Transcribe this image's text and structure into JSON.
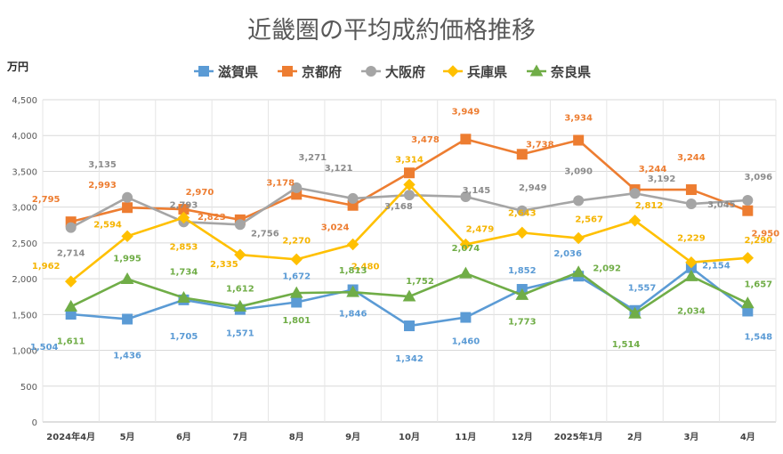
{
  "chart_data": {
    "type": "line",
    "title": "近畿圏の平均成約価格推移",
    "ylabel": "万円",
    "ylim": [
      0,
      4500
    ],
    "yticks": [
      "0",
      "500",
      "1,000",
      "1,500",
      "2,000",
      "2,500",
      "3,000",
      "3,500",
      "4,000",
      "4,500"
    ],
    "grid": true,
    "legend_position": "top",
    "categories": [
      "2024年4月",
      "5月",
      "6月",
      "7月",
      "8月",
      "9月",
      "10月",
      "11月",
      "12月",
      "2025年1月",
      "2月",
      "3月",
      "4月"
    ],
    "series": [
      {
        "name": "滋賀県",
        "color": "#5B9BD5",
        "marker": "square",
        "values": [
          1504,
          1436,
          1705,
          1571,
          1672,
          1846,
          1342,
          1460,
          1852,
          2036,
          1557,
          2154,
          1548
        ],
        "labels": [
          "1,504",
          "1,436",
          "1,705",
          "1,571",
          "1,672",
          "1,846",
          "1,342",
          "1,460",
          "1,852",
          "2,036",
          "1,557",
          "2,154",
          "1,548"
        ]
      },
      {
        "name": "京都府",
        "color": "#ED7D31",
        "marker": "square",
        "values": [
          2795,
          2993,
          2970,
          2823,
          3178,
          3024,
          3478,
          3949,
          3738,
          3934,
          3244,
          3244,
          2950
        ],
        "labels": [
          "2,795",
          "2,993",
          "2,970",
          "2,823",
          "3,178",
          "3,024",
          "3,478",
          "3,949",
          "3,738",
          "3,934",
          "3,244",
          "3,244",
          "2,950"
        ]
      },
      {
        "name": "大阪府",
        "color": "#A5A5A5",
        "marker": "circle",
        "values": [
          2714,
          3135,
          2793,
          2756,
          3271,
          3121,
          3168,
          3145,
          2949,
          3090,
          3192,
          3045,
          3096
        ],
        "labels": [
          "2,714",
          "3,135",
          "2,793",
          "2,756",
          "3,271",
          "3,121",
          "3,168",
          "3,145",
          "2,949",
          "3,090",
          "3,192",
          "3,045",
          "3,096"
        ]
      },
      {
        "name": "兵庫県",
        "color": "#FFC000",
        "marker": "diamond",
        "values": [
          1962,
          2594,
          2853,
          2335,
          2270,
          2480,
          3314,
          2479,
          2643,
          2567,
          2812,
          2229,
          2290
        ],
        "labels": [
          "1,962",
          "2,594",
          "2,853",
          "2,335",
          "2,270",
          "2,480",
          "3,314",
          "2,479",
          "2,643",
          "2,567",
          "2,812",
          "2,229",
          "2,290"
        ]
      },
      {
        "name": "奈良県",
        "color": "#70AD47",
        "marker": "triangle",
        "values": [
          1611,
          1995,
          1734,
          1612,
          1801,
          1813,
          1752,
          2074,
          1773,
          2092,
          1514,
          2034,
          1657
        ],
        "labels": [
          "1,611",
          "1,995",
          "1,734",
          "1,612",
          "1,801",
          "1,813",
          "1,752",
          "2,074",
          "1,773",
          "2,092",
          "1,514",
          "2,034",
          "1,657"
        ]
      }
    ]
  }
}
